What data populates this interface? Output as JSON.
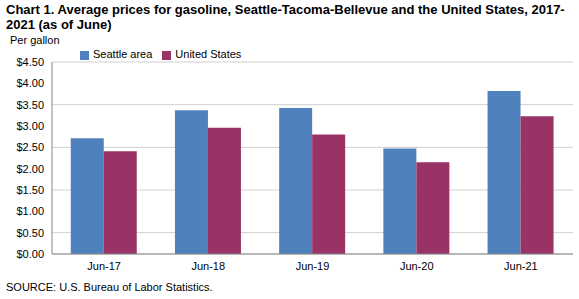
{
  "chart_data": {
    "type": "bar",
    "title": "Chart 1. Average prices for gasoline, Seattle-Tacoma-Bellevue and the United States, 2017-2021  (as of June)",
    "y_label": "Per gallon",
    "annotations": [
      "SOURCE: U.S. Bureau of Labor Statistics."
    ],
    "categories": [
      "Jun-17",
      "Jun-18",
      "Jun-19",
      "Jun-20",
      "Jun-21"
    ],
    "series": [
      {
        "name": "Seattle area",
        "color": "#4f81bd",
        "values": [
          2.71,
          3.37,
          3.42,
          2.47,
          3.82
        ]
      },
      {
        "name": "United States",
        "color": "#993366",
        "values": [
          2.41,
          2.96,
          2.8,
          2.15,
          3.23
        ]
      }
    ],
    "ylim": [
      0,
      4.5
    ],
    "yticks": [
      {
        "value": 0,
        "label": "$0.00"
      },
      {
        "value": 0.5,
        "label": "$0.50"
      },
      {
        "value": 1,
        "label": "$1.00"
      },
      {
        "value": 1.5,
        "label": "$1.50"
      },
      {
        "value": 2,
        "label": "$2.00"
      },
      {
        "value": 2.5,
        "label": "$2.50"
      },
      {
        "value": 3,
        "label": "$3.00"
      },
      {
        "value": 3.5,
        "label": "$3.50"
      },
      {
        "value": 4,
        "label": "$4.00"
      },
      {
        "value": 4.5,
        "label": "$4.50"
      }
    ],
    "grid": true,
    "legend": "top-left"
  }
}
